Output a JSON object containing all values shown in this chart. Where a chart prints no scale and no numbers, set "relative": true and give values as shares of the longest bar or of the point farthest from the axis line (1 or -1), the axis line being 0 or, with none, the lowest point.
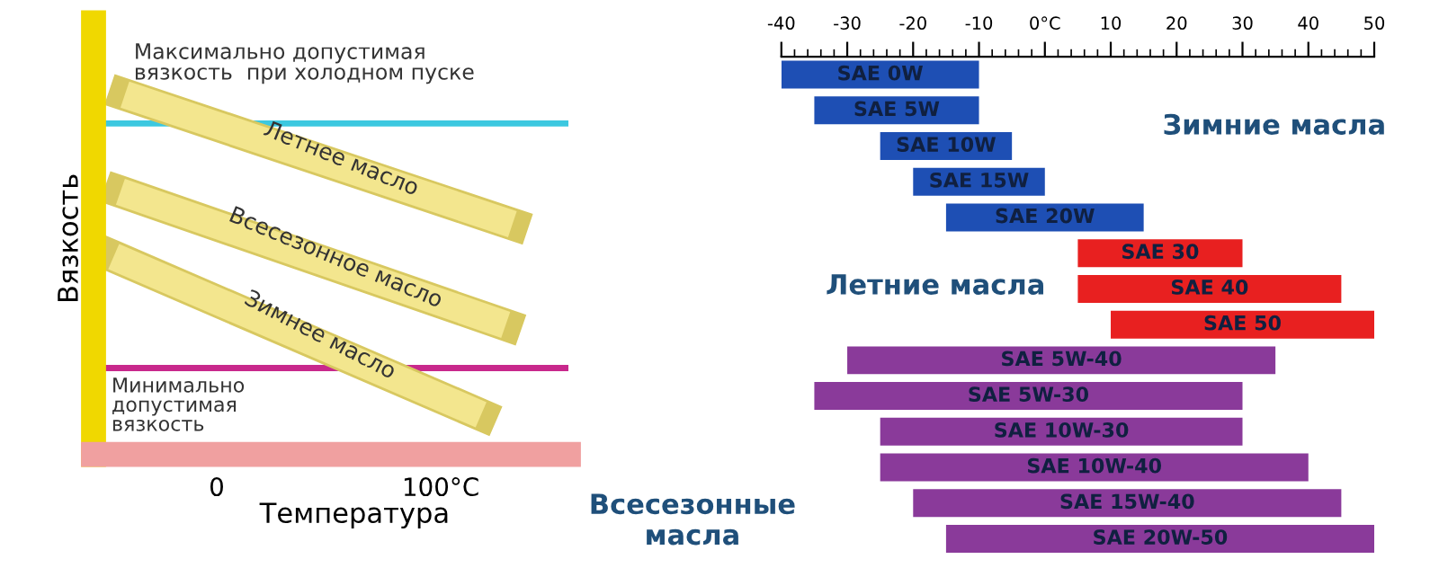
{
  "chart_data": [
    {
      "type": "line",
      "xlabel": "Температура",
      "ylabel": "Вязкость",
      "relative": true,
      "xlim": [
        -55,
        157
      ],
      "xticks": [
        0,
        {
          "value": 100,
          "label": "100°C"
        }
      ],
      "tick_labels": "x",
      "legend": false,
      "grid": false,
      "series": [
        {
          "name": "Летнее масло",
          "color": "#f3e68e",
          "x": [
            -41,
            132
          ],
          "values": [
            1.0,
            0.64
          ]
        },
        {
          "name": "Всесезонное масло",
          "color": "#f3e68e",
          "x": [
            -43,
            129
          ],
          "values": [
            0.73,
            0.36
          ]
        },
        {
          "name": "Зимнее масло",
          "color": "#f3e68e",
          "x": [
            -46,
            118
          ],
          "values": [
            0.55,
            0.11
          ]
        }
      ],
      "ref_lines": [
        {
          "axis": "y",
          "value": 0.92,
          "label": "Максимально допустимая\nвязкость  при холодном пуске",
          "color": "#3cc8e0"
        },
        {
          "axis": "y",
          "value": 0.24,
          "label": "Минимально\nдопустимая\nвязкость",
          "color": "#c8288c"
        }
      ]
    },
    {
      "type": "bar",
      "orientation": "horizontal",
      "xlim": [
        -40,
        50
      ],
      "xticks": [
        -40,
        -30,
        -20,
        -10,
        {
          "value": 0,
          "label": "0°C"
        },
        10,
        20,
        30,
        40,
        50
      ],
      "tick_labels": "x",
      "grid": false,
      "categories": [
        "SAE 0W",
        "SAE 5W",
        "SAE 10W",
        "SAE 15W",
        "SAE 20W",
        "SAE 30",
        "SAE 40",
        "SAE 50",
        "SAE 5W-40",
        "SAE 5W-30",
        "SAE 10W-30",
        "SAE 10W-40",
        "SAE 15W-40",
        "SAE 20W-50"
      ],
      "base": [
        -40,
        -35,
        -25,
        -20,
        -15,
        5,
        5,
        10,
        -30,
        -35,
        -25,
        -25,
        -20,
        -15
      ],
      "values": [
        30,
        25,
        20,
        20,
        30,
        25,
        40,
        40,
        65,
        65,
        55,
        65,
        65,
        65
      ],
      "colors": [
        "#1e4fb4",
        "#1e4fb4",
        "#1e4fb4",
        "#1e4fb4",
        "#1e4fb4",
        "#e82020",
        "#e82020",
        "#e82020",
        "#8a3a9a",
        "#8a3a9a",
        "#8a3a9a",
        "#8a3a9a",
        "#8a3a9a",
        "#8a3a9a"
      ],
      "annotations": [
        "Зимние масла",
        "Летние масла",
        "Всесезонные\nмасла"
      ]
    }
  ]
}
